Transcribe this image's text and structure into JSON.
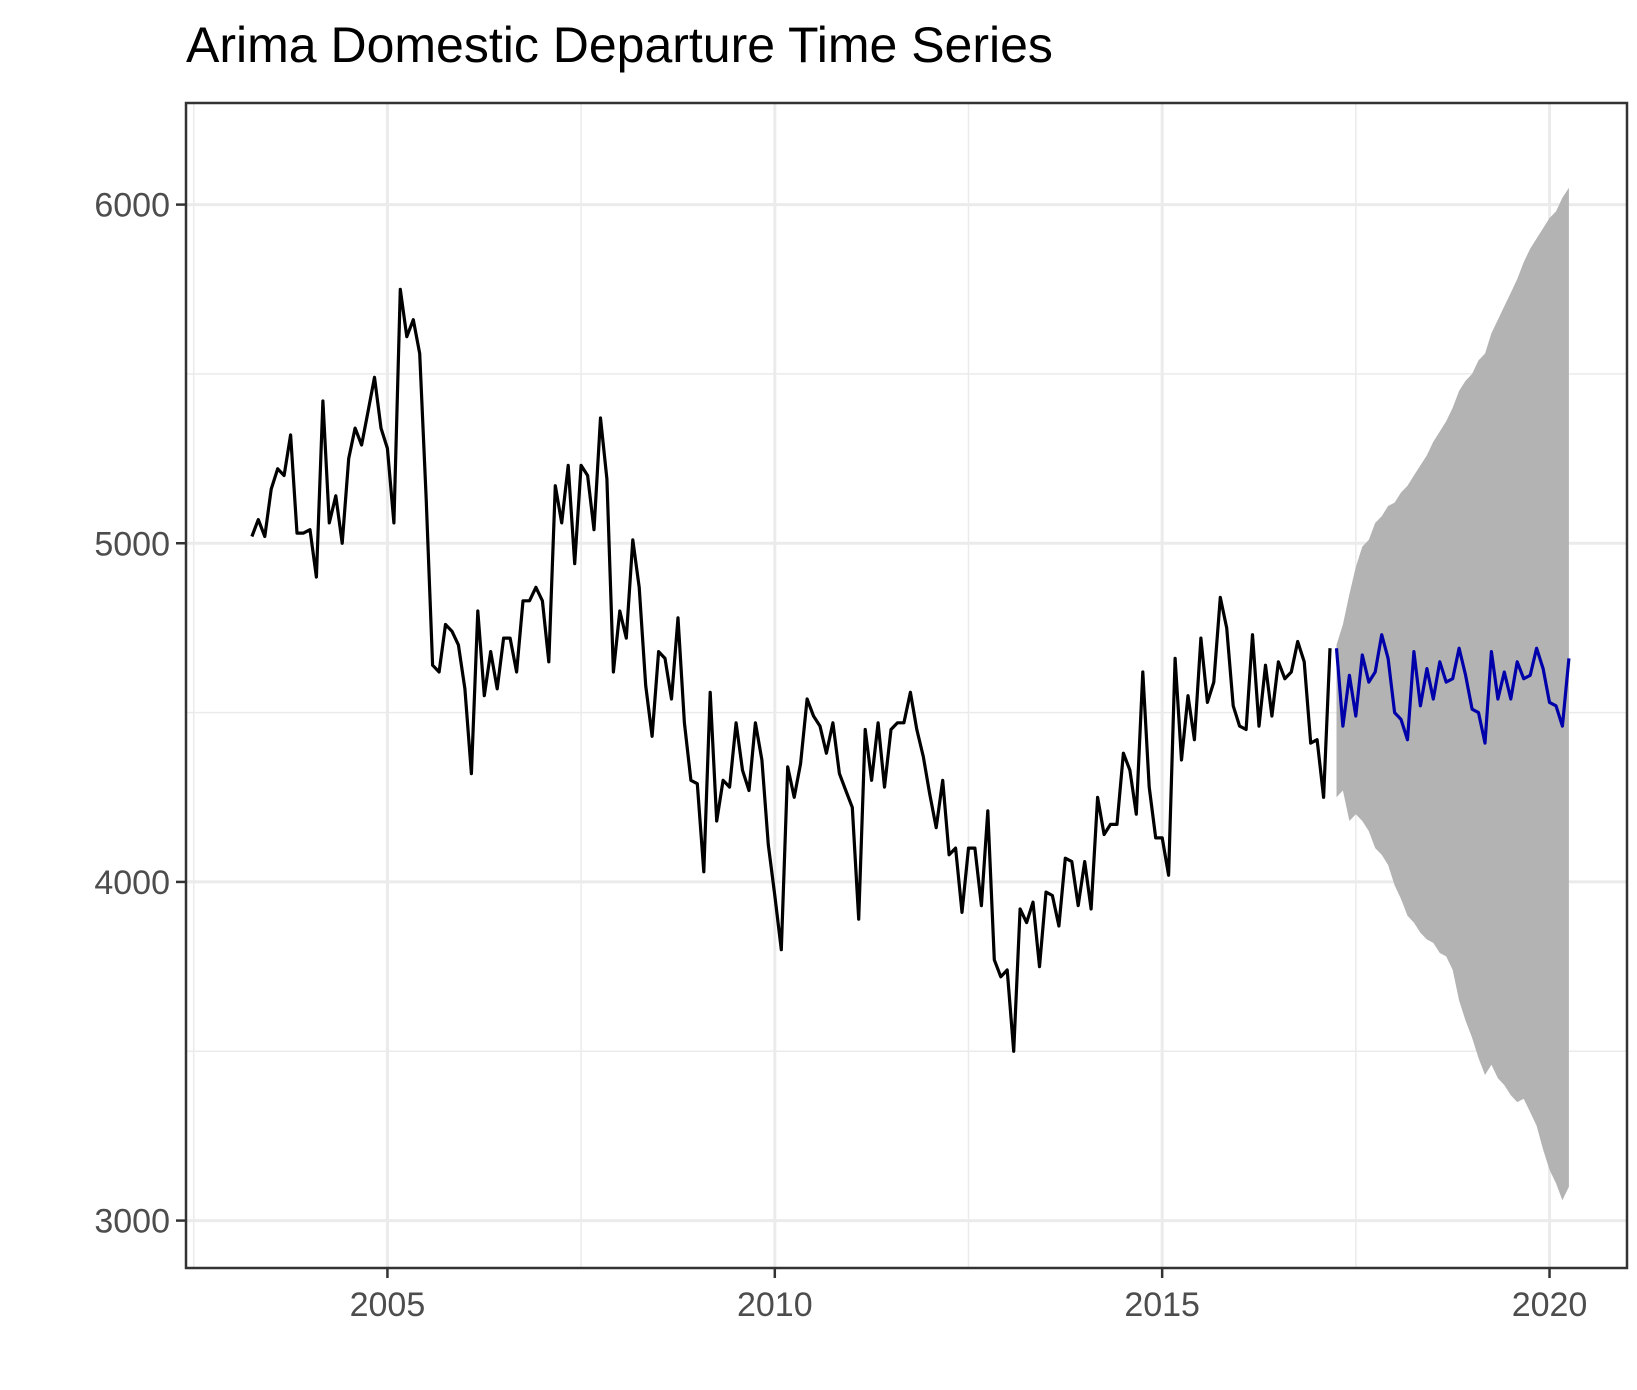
{
  "chart_data": {
    "type": "line",
    "title": "Arima Domestic Departure Time Series",
    "xlabel": "",
    "ylabel": "",
    "xlim": [
      2002.4,
      2021.0
    ],
    "ylim": [
      2860,
      6300
    ],
    "x_ticks": [
      2005,
      2010,
      2015,
      2020
    ],
    "x_tick_labels": [
      "2005",
      "2010",
      "2015",
      "2020"
    ],
    "y_ticks": [
      3000,
      4000,
      5000,
      6000
    ],
    "y_tick_labels": [
      "3000",
      "4000",
      "5000",
      "6000"
    ],
    "grid": true,
    "legend": "none",
    "colors": {
      "observed": "#000000",
      "forecast": "#0000aa",
      "interval": "#b3b3b3",
      "grid": "#ebebeb",
      "panel_border": "#333333"
    },
    "series": [
      {
        "kind": "observed",
        "start": 2003.25,
        "step": 0.08333333,
        "values": [
          5020,
          5070,
          5020,
          5160,
          5220,
          5200,
          5320,
          5030,
          5030,
          5040,
          4900,
          5420,
          5060,
          5140,
          5000,
          5250,
          5340,
          5290,
          5390,
          5490,
          5340,
          5280,
          5060,
          5750,
          5610,
          5660,
          5560,
          5130,
          4640,
          4620,
          4760,
          4740,
          4700,
          4570,
          4320,
          4800,
          4550,
          4680,
          4570,
          4720,
          4720,
          4620,
          4830,
          4830,
          4870,
          4830,
          4650,
          5170,
          5060,
          5230,
          4940,
          5230,
          5200,
          5040,
          5370,
          5190,
          4620,
          4800,
          4720,
          5010,
          4870,
          4580,
          4430,
          4680,
          4660,
          4540,
          4780,
          4470,
          4300,
          4290,
          4030,
          4560,
          4180,
          4300,
          4280,
          4470,
          4330,
          4270,
          4470,
          4360,
          4110,
          3960,
          3800,
          4340,
          4250,
          4350,
          4540,
          4490,
          4460,
          4380,
          4470,
          4320,
          4270,
          4220,
          3890,
          4450,
          4300,
          4470,
          4280,
          4450,
          4470,
          4470,
          4560,
          4450,
          4370,
          4260,
          4160,
          4300,
          4080,
          4100,
          3910,
          4100,
          4100,
          3930,
          4210,
          3770,
          3720,
          3740,
          3500,
          3920,
          3880,
          3940,
          3750,
          3970,
          3960,
          3870,
          4070,
          4060,
          3930,
          4060,
          3920,
          4250,
          4140,
          4170,
          4170,
          4380,
          4330,
          4200,
          4620,
          4280,
          4130,
          4130,
          4020,
          4660,
          4360,
          4550,
          4420,
          4720,
          4530,
          4590,
          4840,
          4750,
          4520,
          4460,
          4450,
          4730,
          4460,
          4640,
          4490,
          4650,
          4600,
          4620,
          4710,
          4650,
          4410,
          4420,
          4250,
          4690
        ]
      },
      {
        "kind": "forecast",
        "start": 2017.25,
        "step": 0.08333333,
        "values": [
          4690,
          4460,
          4610,
          4490,
          4670,
          4590,
          4620,
          4730,
          4660,
          4500,
          4480,
          4420,
          4680,
          4520,
          4630,
          4540,
          4650,
          4590,
          4600,
          4690,
          4610,
          4510,
          4500,
          4410,
          4680,
          4540,
          4620,
          4540,
          4650,
          4600,
          4610,
          4690,
          4630,
          4530,
          4520,
          4460,
          4660
        ],
        "lower": [
          4250,
          4270,
          4180,
          4200,
          4180,
          4150,
          4100,
          4080,
          4050,
          3990,
          3950,
          3900,
          3880,
          3850,
          3830,
          3820,
          3790,
          3780,
          3740,
          3650,
          3590,
          3540,
          3480,
          3430,
          3460,
          3420,
          3400,
          3370,
          3350,
          3360,
          3320,
          3280,
          3210,
          3150,
          3110,
          3060,
          3100
        ],
        "upper": [
          4700,
          4760,
          4850,
          4930,
          4990,
          5010,
          5060,
          5080,
          5110,
          5120,
          5150,
          5170,
          5200,
          5230,
          5260,
          5300,
          5330,
          5360,
          5400,
          5450,
          5480,
          5500,
          5540,
          5560,
          5620,
          5660,
          5700,
          5740,
          5780,
          5830,
          5870,
          5900,
          5930,
          5960,
          5980,
          6020,
          6050
        ]
      }
    ]
  }
}
